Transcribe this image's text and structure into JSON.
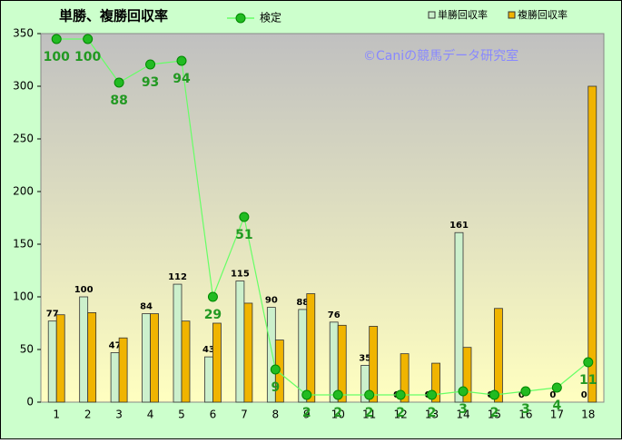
{
  "chart_data": {
    "type": "bar",
    "title": "単勝、複勝回収率",
    "watermark": "©Caniの競馬データ研究室",
    "categories": [
      "1",
      "2",
      "3",
      "4",
      "5",
      "6",
      "7",
      "8",
      "9",
      "10",
      "11",
      "12",
      "13",
      "14",
      "15",
      "16",
      "17",
      "18"
    ],
    "series": [
      {
        "name": "単勝回収率",
        "type": "bar",
        "color": "#ccf0cc",
        "values": [
          77,
          100,
          47,
          84,
          112,
          43,
          115,
          90,
          88,
          76,
          35,
          0,
          0,
          161,
          0,
          0,
          0,
          0
        ],
        "value_labels": [
          "77",
          "100",
          "47",
          "84",
          "112",
          "43",
          "115",
          "90",
          "88",
          "76",
          "35",
          "0",
          "0",
          "161",
          "0",
          "0",
          "0",
          "0"
        ]
      },
      {
        "name": "複勝回収率",
        "type": "bar",
        "color": "#f0b400",
        "values": [
          83,
          85,
          61,
          84,
          77,
          75,
          94,
          59,
          103,
          73,
          72,
          46,
          37,
          52,
          89,
          0,
          0,
          300
        ]
      },
      {
        "name": "検定",
        "type": "line",
        "axis": "y2",
        "color": "#22bb22",
        "values": [
          100,
          100,
          88,
          93,
          94,
          29,
          51,
          9,
          2,
          2,
          2,
          2,
          2,
          3,
          2,
          3,
          4,
          11
        ]
      }
    ],
    "ylim": [
      0,
      350
    ],
    "yticks": [
      0,
      50,
      100,
      150,
      200,
      250,
      300,
      350
    ],
    "y2lim": [
      0,
      101.5
    ],
    "grid": false,
    "legend": "top"
  }
}
